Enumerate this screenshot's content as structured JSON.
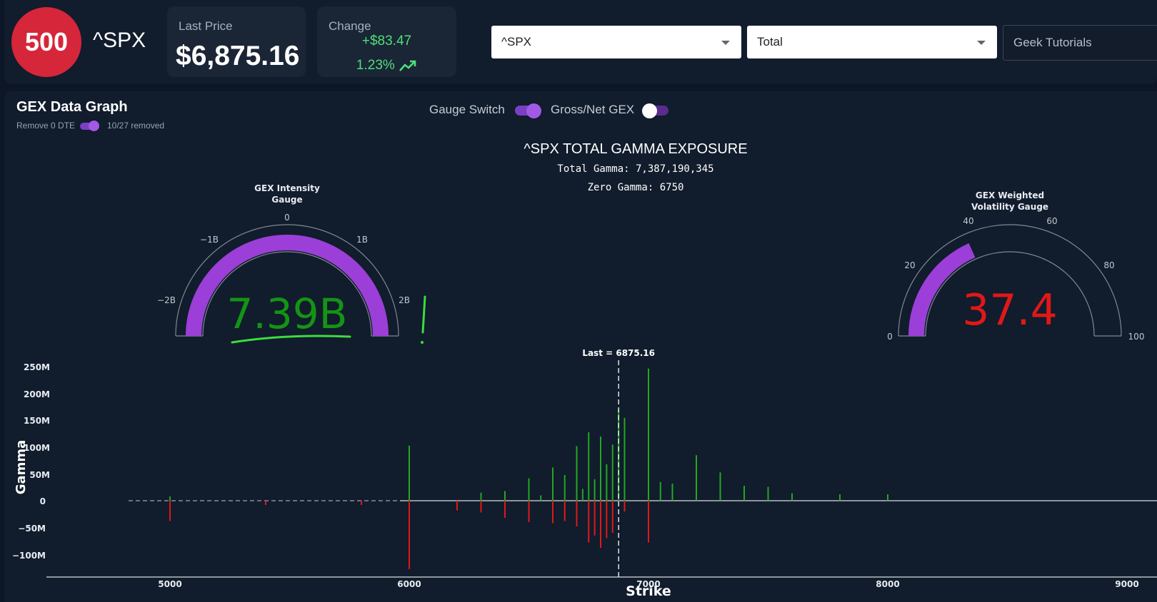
{
  "header": {
    "logo_text": "500",
    "ticker": "^SPX",
    "last_price_label": "Last Price",
    "last_price": "$6,875.16",
    "change_label": "Change",
    "change_abs": "+$83.47",
    "change_pct": "1.23%",
    "symbol_select": "^SPX",
    "type_select": "Total",
    "tutorials_label": "Geek Tutorials"
  },
  "graph": {
    "title": "GEX Data Graph",
    "remove_0dte_label": "Remove 0 DTE",
    "removed_text": "10/27 removed",
    "gauge_switch_label": "Gauge Switch",
    "gross_net_label": "Gross/Net GEX",
    "chart_title": "^SPX TOTAL GAMMA EXPOSURE",
    "total_gamma": "Total Gamma: 7,387,190,345",
    "zero_gamma": "Zero Gamma: 6750",
    "last_label": "Last = 6875.16",
    "ylabel": "Gamma",
    "xlabel": "Strike"
  },
  "gauge_left": {
    "title_line1": "GEX Intensity",
    "title_line2": "Gauge",
    "value_text": "7.39B",
    "ticks": [
      "−2B",
      "−1B",
      "0",
      "1B",
      "2B"
    ]
  },
  "gauge_right": {
    "title_line1": "GEX Weighted",
    "title_line2": "Volatility Gauge",
    "value_text": "37.4",
    "ticks": [
      "0",
      "20",
      "40",
      "60",
      "80",
      "100"
    ]
  },
  "colors": {
    "accent": "#9b3fd8",
    "positive": "#22a822",
    "negative": "#e01818",
    "logo": "#d6263a"
  },
  "chart_data": {
    "type": "bar",
    "title": "^SPX TOTAL GAMMA EXPOSURE",
    "xlabel": "Strike",
    "ylabel": "Gamma",
    "xlim": [
      4500,
      9000
    ],
    "ylim": [
      -140000000,
      260000000
    ],
    "x_ticks": [
      "5000",
      "6000",
      "7000",
      "8000",
      "9000"
    ],
    "y_ticks": [
      "250M",
      "200M",
      "150M",
      "100M",
      "50M",
      "0",
      "−50M",
      "−100M"
    ],
    "last": 6875.16,
    "zero_gamma": 6750,
    "positive_bars": [
      {
        "strike": 5000,
        "value": 8000000
      },
      {
        "strike": 6000,
        "value": 103000000
      },
      {
        "strike": 6300,
        "value": 15000000
      },
      {
        "strike": 6400,
        "value": 18000000
      },
      {
        "strike": 6500,
        "value": 42000000
      },
      {
        "strike": 6550,
        "value": 10000000
      },
      {
        "strike": 6600,
        "value": 62000000
      },
      {
        "strike": 6650,
        "value": 48000000
      },
      {
        "strike": 6700,
        "value": 102000000
      },
      {
        "strike": 6725,
        "value": 22000000
      },
      {
        "strike": 6750,
        "value": 128000000
      },
      {
        "strike": 6775,
        "value": 40000000
      },
      {
        "strike": 6800,
        "value": 120000000
      },
      {
        "strike": 6825,
        "value": 68000000
      },
      {
        "strike": 6850,
        "value": 105000000
      },
      {
        "strike": 6875,
        "value": 170000000
      },
      {
        "strike": 6900,
        "value": 155000000
      },
      {
        "strike": 7000,
        "value": 247000000
      },
      {
        "strike": 7050,
        "value": 35000000
      },
      {
        "strike": 7100,
        "value": 32000000
      },
      {
        "strike": 7200,
        "value": 85000000
      },
      {
        "strike": 7300,
        "value": 53000000
      },
      {
        "strike": 7400,
        "value": 28000000
      },
      {
        "strike": 7500,
        "value": 26000000
      },
      {
        "strike": 7600,
        "value": 14000000
      },
      {
        "strike": 7800,
        "value": 12000000
      },
      {
        "strike": 8000,
        "value": 12000000
      }
    ],
    "negative_bars": [
      {
        "strike": 5000,
        "value": -38000000
      },
      {
        "strike": 5400,
        "value": -8000000
      },
      {
        "strike": 5800,
        "value": -8000000
      },
      {
        "strike": 6000,
        "value": -128000000
      },
      {
        "strike": 6200,
        "value": -18000000
      },
      {
        "strike": 6300,
        "value": -22000000
      },
      {
        "strike": 6400,
        "value": -32000000
      },
      {
        "strike": 6500,
        "value": -40000000
      },
      {
        "strike": 6600,
        "value": -42000000
      },
      {
        "strike": 6650,
        "value": -38000000
      },
      {
        "strike": 6700,
        "value": -48000000
      },
      {
        "strike": 6750,
        "value": -78000000
      },
      {
        "strike": 6775,
        "value": -65000000
      },
      {
        "strike": 6800,
        "value": -88000000
      },
      {
        "strike": 6825,
        "value": -70000000
      },
      {
        "strike": 6850,
        "value": -60000000
      },
      {
        "strike": 6900,
        "value": -20000000
      },
      {
        "strike": 7000,
        "value": -78000000
      }
    ]
  }
}
